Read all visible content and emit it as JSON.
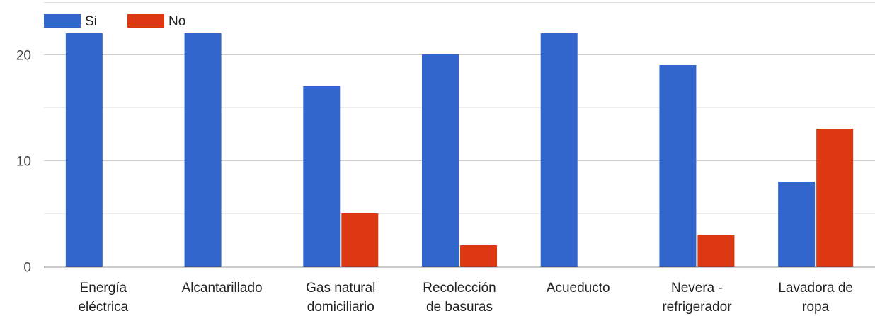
{
  "chart_data": {
    "type": "bar",
    "categories": [
      [
        "Energía",
        "eléctrica"
      ],
      [
        "Alcantarillado"
      ],
      [
        "Gas natural",
        "domiciliario"
      ],
      [
        "Recolección",
        "de basuras"
      ],
      [
        "Acueducto"
      ],
      [
        "Nevera -",
        "refrigerador"
      ],
      [
        "Lavadora de",
        "ropa"
      ]
    ],
    "series": [
      {
        "name": "Si",
        "color": "#3366cc",
        "values": [
          22,
          22,
          17,
          20,
          22,
          19,
          8
        ]
      },
      {
        "name": "No",
        "color": "#dc3912",
        "values": [
          0,
          0,
          5,
          2,
          0,
          3,
          13
        ]
      }
    ],
    "ylim": [
      0,
      22
    ],
    "yticks": [
      0,
      10,
      20
    ],
    "minor_gridlines": [
      5,
      15
    ],
    "grid": true,
    "legend_position": "top-left",
    "title": "",
    "xlabel": "",
    "ylabel": ""
  }
}
